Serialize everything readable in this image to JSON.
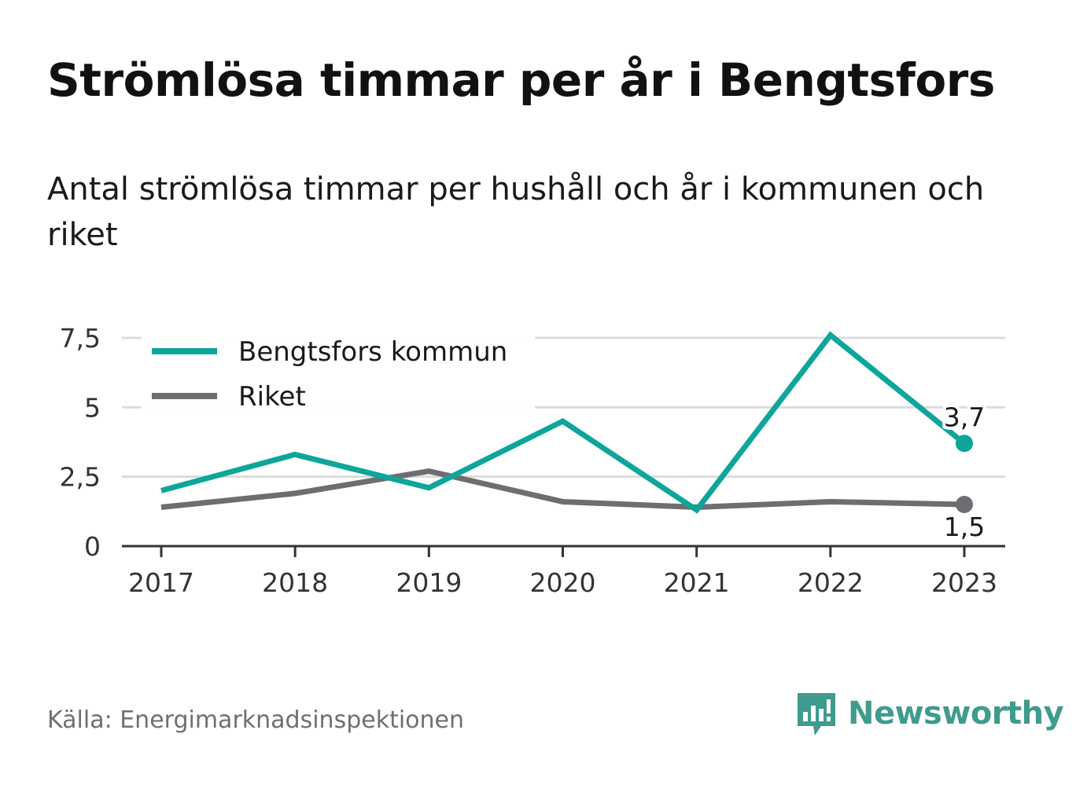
{
  "header": {
    "title": "Strömlösa timmar per år i Bengtsfors",
    "subtitle": "Antal strömlösa timmar per hushåll och år i kommunen och riket"
  },
  "footer": {
    "source": "Källa: Energimarknadsinspektionen",
    "brand": "Newsworthy",
    "brand_icon": "bar-chart-speech-bubble-icon"
  },
  "colors": {
    "series_1": "#0ea59b",
    "series_2": "#6e6d72",
    "grid": "#dcdcdc",
    "axis": "#333333",
    "brand": "#3f9b8e"
  },
  "chart_data": {
    "type": "line",
    "x": [
      "2017",
      "2018",
      "2019",
      "2020",
      "2021",
      "2022",
      "2023"
    ],
    "series": [
      {
        "name": "Bengtsfors kommun",
        "color": "#0ea59b",
        "values": [
          2.0,
          3.3,
          2.1,
          4.5,
          1.3,
          7.6,
          3.7
        ]
      },
      {
        "name": "Riket",
        "color": "#6e6d72",
        "values": [
          1.4,
          1.9,
          2.7,
          1.6,
          1.4,
          1.6,
          1.5
        ]
      }
    ],
    "y_ticks": [
      "0",
      "2,5",
      "5",
      "7,5"
    ],
    "y_tick_values": [
      0,
      2.5,
      5,
      7.5
    ],
    "ylim": [
      0,
      7.5
    ],
    "end_labels": [
      "3,7",
      "1,5"
    ],
    "grid": true,
    "legend_position": "top-left"
  }
}
